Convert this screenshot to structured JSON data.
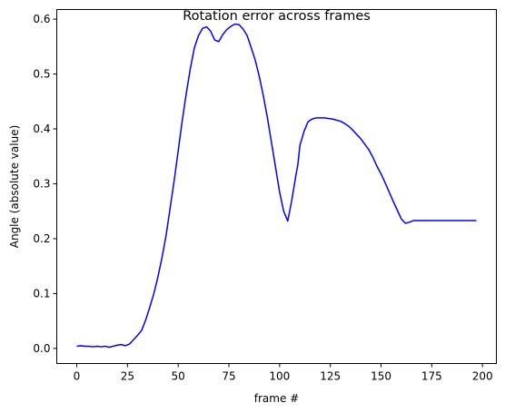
{
  "chart_data": {
    "type": "line",
    "title": "Rotation error across frames",
    "xlabel": "frame #",
    "ylabel": "Angle (absolute value)",
    "xlim": [
      -9.85,
      206.85
    ],
    "ylim": [
      -0.0275,
      0.6175
    ],
    "xticks": [
      0,
      25,
      50,
      75,
      100,
      125,
      150,
      175,
      200
    ],
    "yticks": [
      0.0,
      0.1,
      0.2,
      0.3,
      0.4,
      0.5,
      0.6
    ],
    "ytick_labels": [
      "0.0",
      "0.1",
      "0.2",
      "0.3",
      "0.4",
      "0.5",
      "0.6"
    ],
    "grid": false,
    "legend": "none",
    "series": [
      {
        "color": "#0000ff",
        "x": [
          0,
          2,
          4,
          6,
          8,
          10,
          12,
          14,
          16,
          18,
          20,
          22,
          24,
          26,
          28,
          30,
          32,
          34,
          36,
          38,
          40,
          42,
          44,
          46,
          48,
          50,
          52,
          54,
          56,
          58,
          60,
          62,
          64,
          66,
          68,
          70,
          72,
          74,
          76,
          78,
          80,
          82,
          84,
          86,
          88,
          90,
          92,
          94,
          96,
          98,
          100,
          102,
          104,
          106,
          108,
          109,
          110,
          112,
          114,
          116,
          118,
          120,
          122,
          124,
          126,
          128,
          130,
          132,
          134,
          136,
          138,
          140,
          142,
          144,
          146,
          148,
          150,
          152,
          154,
          156,
          158,
          160,
          162,
          164,
          166,
          168,
          170,
          172,
          174,
          176,
          178,
          179,
          180,
          182,
          184,
          186,
          188,
          190,
          192,
          194,
          196,
          197
        ],
        "y": [
          0.004,
          0.005,
          0.004,
          0.004,
          0.003,
          0.004,
          0.003,
          0.004,
          0.002,
          0.004,
          0.006,
          0.007,
          0.005,
          0.008,
          0.016,
          0.024,
          0.033,
          0.052,
          0.075,
          0.1,
          0.13,
          0.165,
          0.205,
          0.255,
          0.305,
          0.36,
          0.415,
          0.465,
          0.51,
          0.548,
          0.57,
          0.583,
          0.586,
          0.578,
          0.562,
          0.559,
          0.572,
          0.581,
          0.587,
          0.591,
          0.59,
          0.582,
          0.57,
          0.548,
          0.525,
          0.495,
          0.46,
          0.42,
          0.375,
          0.33,
          0.285,
          0.25,
          0.232,
          0.27,
          0.315,
          0.335,
          0.37,
          0.395,
          0.413,
          0.418,
          0.42,
          0.42,
          0.42,
          0.419,
          0.418,
          0.416,
          0.414,
          0.41,
          0.405,
          0.398,
          0.39,
          0.382,
          0.372,
          0.362,
          0.348,
          0.332,
          0.318,
          0.302,
          0.285,
          0.268,
          0.252,
          0.236,
          0.228,
          0.23,
          0.233,
          0.233,
          0.233,
          0.233,
          0.233,
          0.233,
          0.233,
          0.233,
          0.233,
          0.233,
          0.233,
          0.233,
          0.233,
          0.233,
          0.233,
          0.233,
          0.233,
          0.233
        ]
      }
    ]
  }
}
